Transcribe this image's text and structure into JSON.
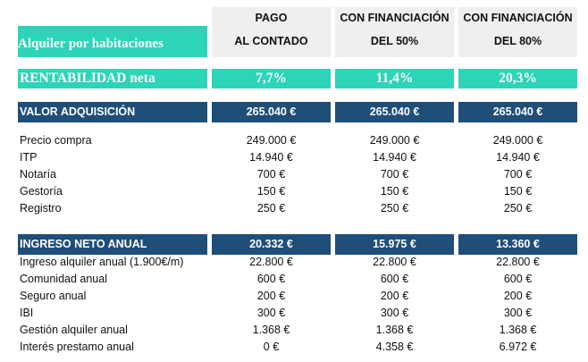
{
  "header": {
    "title": "Alquiler por habitaciones",
    "columns": [
      {
        "line1": "PAGO",
        "line2": "AL CONTADO"
      },
      {
        "line1": "CON FINANCIACIÓN",
        "line2": "DEL 50%"
      },
      {
        "line1": "CON FINANCIACIÓN",
        "line2": "DEL 80%"
      }
    ]
  },
  "rentabilidad": {
    "label": "RENTABILIDAD neta",
    "values": [
      "7,7%",
      "11,4%",
      "20,3%"
    ]
  },
  "valor": {
    "label": "VALOR ADQUISICIÓN",
    "values": [
      "265.040 €",
      "265.040 €",
      "265.040 €"
    ],
    "rows": [
      {
        "label": "Precio compra",
        "values": [
          "249.000 €",
          "249.000 €",
          "249.000 €"
        ]
      },
      {
        "label": "ITP",
        "values": [
          "14.940 €",
          "14.940 €",
          "14.940 €"
        ]
      },
      {
        "label": "Notaría",
        "values": [
          "700 €",
          "700 €",
          "700 €"
        ]
      },
      {
        "label": "Gestoría",
        "values": [
          "150 €",
          "150 €",
          "150 €"
        ]
      },
      {
        "label": "Registro",
        "values": [
          "250 €",
          "250 €",
          "250 €"
        ]
      }
    ]
  },
  "ingreso": {
    "label": "INGRESO NETO ANUAL",
    "values": [
      "20.332 €",
      "15.975 €",
      "13.360 €"
    ],
    "rows": [
      {
        "label": "Ingreso alquiler anual (1.900€/m)",
        "values": [
          "22.800 €",
          "22.800 €",
          "22.800 €"
        ]
      },
      {
        "label": "Comunidad anual",
        "values": [
          "600 €",
          "600 €",
          "600 €"
        ]
      },
      {
        "label": "Seguro anual",
        "values": [
          "200 €",
          "200 €",
          "200 €"
        ]
      },
      {
        "label": "IBI",
        "values": [
          "300 €",
          "300 €",
          "300 €"
        ]
      },
      {
        "label": "Gestión alquiler anual",
        "values": [
          "1.368 €",
          "1.368 €",
          "1.368 €"
        ]
      },
      {
        "label": "Interés prestamo anual",
        "values": [
          "0 €",
          "4.358 €",
          "6.972 €"
        ]
      }
    ]
  }
}
